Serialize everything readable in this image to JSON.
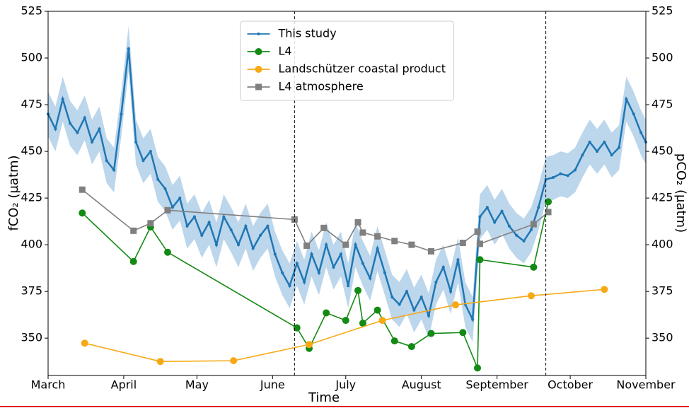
{
  "chart_data": {
    "type": "line",
    "xlabel": "Time",
    "ylabel": "fCO₂ (µatm)",
    "y2label": "pCO₂ (µatm)",
    "xlim": [
      0,
      245
    ],
    "xticks": [
      {
        "value": 0,
        "label": "March"
      },
      {
        "value": 31,
        "label": "April"
      },
      {
        "value": 61,
        "label": "May"
      },
      {
        "value": 92,
        "label": "June"
      },
      {
        "value": 122,
        "label": "July"
      },
      {
        "value": 153,
        "label": "August"
      },
      {
        "value": 184,
        "label": "September"
      },
      {
        "value": 214,
        "label": "October"
      },
      {
        "value": 245,
        "label": "November"
      }
    ],
    "ylim": [
      330,
      525
    ],
    "yticks": [
      350,
      375,
      400,
      425,
      450,
      475,
      500,
      525
    ],
    "y2lim": [
      330,
      525
    ],
    "y2ticks": [
      350,
      375,
      400,
      425,
      450,
      475,
      500,
      525
    ],
    "vlines": [
      101,
      204
    ],
    "legend": "upper center",
    "series": [
      {
        "name": "This study",
        "color": "#1f77b4",
        "marker": "dot",
        "uncertainty": 12,
        "x": [
          0,
          3,
          6,
          9,
          12,
          15,
          18,
          21,
          24,
          27,
          30,
          33,
          36,
          39,
          42,
          45,
          48,
          51,
          54,
          57,
          60,
          63,
          66,
          69,
          72,
          75,
          78,
          81,
          84,
          87,
          90,
          93,
          96,
          99,
          102,
          105,
          108,
          111,
          114,
          117,
          120,
          123,
          126,
          129,
          132,
          135,
          138,
          141,
          144,
          147,
          150,
          153,
          156,
          159,
          162,
          165,
          168,
          171,
          174,
          177,
          180,
          183,
          186,
          189,
          192,
          195,
          198,
          201,
          204,
          207,
          210,
          213,
          216,
          219,
          222,
          225,
          228,
          231,
          234,
          237,
          240,
          243,
          245
        ],
        "values": [
          470,
          462,
          478,
          465,
          460,
          468,
          455,
          462,
          445,
          440,
          470,
          505,
          455,
          445,
          450,
          435,
          430,
          420,
          425,
          410,
          415,
          405,
          412,
          400,
          415,
          408,
          400,
          410,
          398,
          405,
          410,
          395,
          385,
          378,
          390,
          380,
          395,
          385,
          400,
          388,
          395,
          378,
          400,
          390,
          382,
          398,
          385,
          372,
          368,
          375,
          365,
          372,
          362,
          380,
          388,
          375,
          392,
          368,
          360,
          415,
          420,
          412,
          418,
          410,
          405,
          402,
          408,
          420,
          435,
          436,
          438,
          437,
          440,
          448,
          455,
          450,
          455,
          448,
          452,
          478,
          470,
          460,
          455
        ]
      },
      {
        "name": "L4",
        "color": "#138a13",
        "marker": "circle",
        "x": [
          14,
          35,
          42,
          49,
          102,
          107,
          114,
          122,
          127,
          129,
          135,
          142,
          149,
          157,
          170,
          176,
          177,
          199,
          205
        ],
        "values": [
          417,
          391,
          409.5,
          396,
          355.5,
          344.5,
          363.5,
          359.5,
          375.5,
          358,
          365,
          348.5,
          345.5,
          352.5,
          353,
          334,
          392,
          388,
          423
        ]
      },
      {
        "name": "Landschützer coastal product",
        "color": "#f5a915",
        "marker": "circle",
        "x": [
          15,
          46,
          76,
          107,
          137,
          167,
          198,
          228
        ],
        "values": [
          347.3,
          337.5,
          337.9,
          346.6,
          359.5,
          367.8,
          372.7,
          376.1
        ],
        "axis": "y2"
      },
      {
        "name": "L4 atmosphere",
        "color": "#808080",
        "marker": "square",
        "x": [
          14,
          35,
          42,
          49,
          101,
          106,
          113,
          122,
          127,
          129,
          135,
          142,
          149,
          157,
          170,
          176,
          177,
          199,
          205
        ],
        "values": [
          429.5,
          407.5,
          411.5,
          418.5,
          413.5,
          399.5,
          409,
          400,
          412,
          406.5,
          404.5,
          402,
          400,
          396.5,
          401,
          407,
          400.5,
          411,
          417.5
        ],
        "axis": "y2"
      }
    ]
  }
}
